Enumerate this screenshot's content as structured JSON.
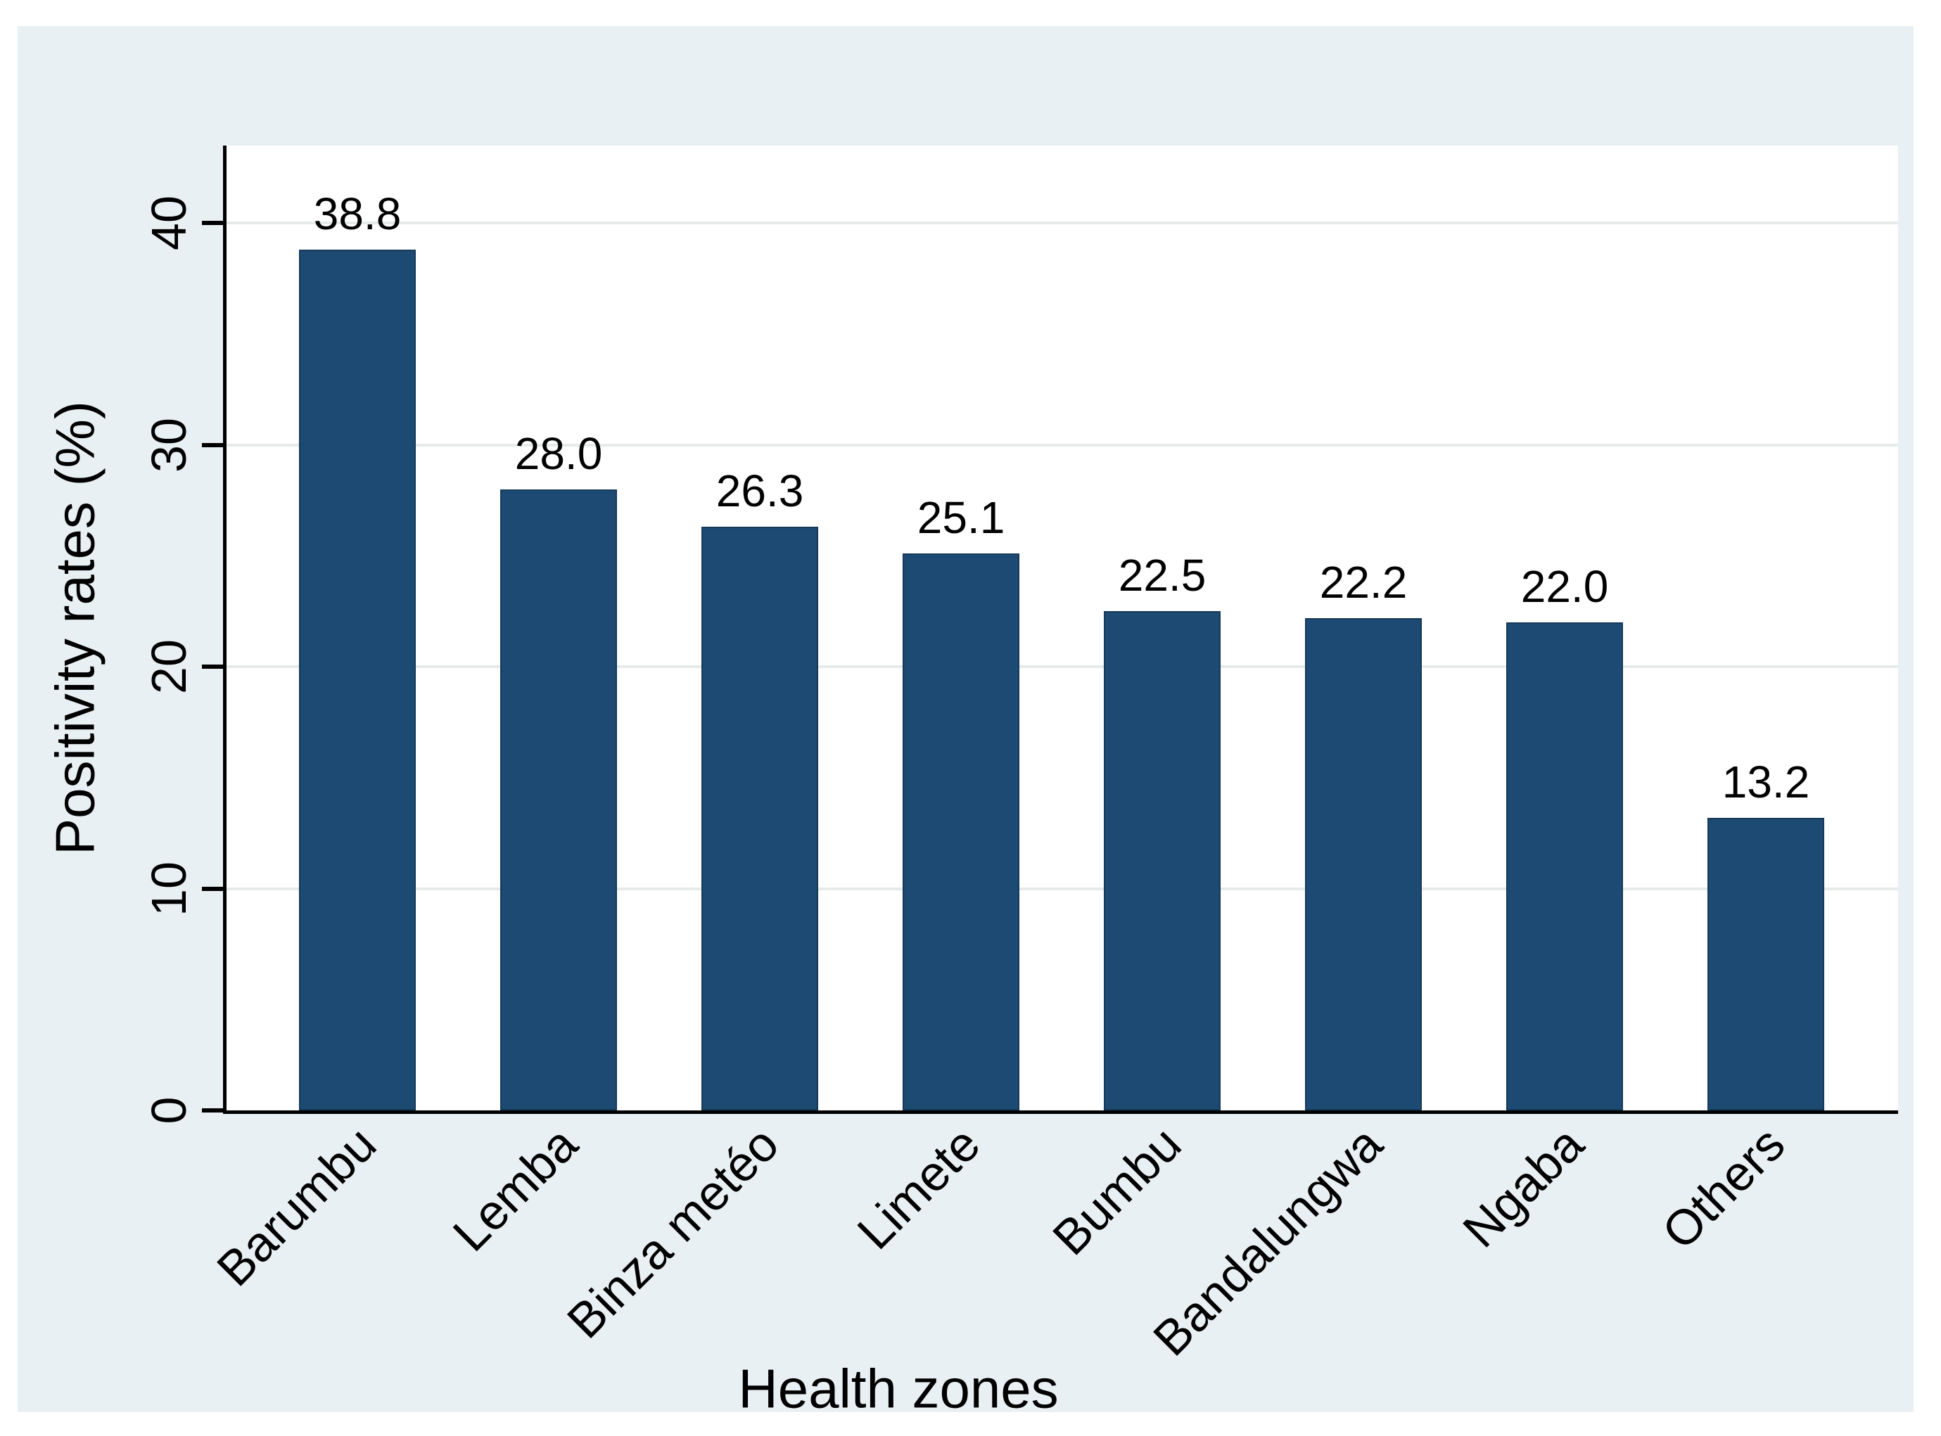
{
  "chart_data": {
    "type": "bar",
    "title": "",
    "categories": [
      "Barumbu",
      "Lemba",
      "Binza metéo",
      "Limete",
      "Bumbu",
      "Bandalungwa",
      "Ngaba",
      "Others"
    ],
    "values": [
      38.8,
      28.0,
      26.3,
      25.1,
      22.5,
      22.2,
      22.0,
      13.2
    ],
    "value_labels": [
      "38.8",
      "28.0",
      "26.3",
      "25.1",
      "22.5",
      "22.2",
      "22.0",
      "13.2"
    ],
    "xlabel": "Health zones",
    "ylabel": "Positivity rates (%)",
    "yticks": [
      0,
      10,
      20,
      30,
      40
    ],
    "ytick_labels": [
      "0",
      "10",
      "20",
      "30",
      "40"
    ],
    "ylim": [
      0,
      43.5
    ],
    "grid": "horizontal",
    "legend": "none",
    "colors": {
      "bar_fill": "#1d4a72",
      "bar_border": "#16395a",
      "canvas_background": "#e9f0f3",
      "plot_background": "#ffffff",
      "gridline": "#e6eaeb",
      "axis": "#000000",
      "text": "#000000"
    }
  }
}
